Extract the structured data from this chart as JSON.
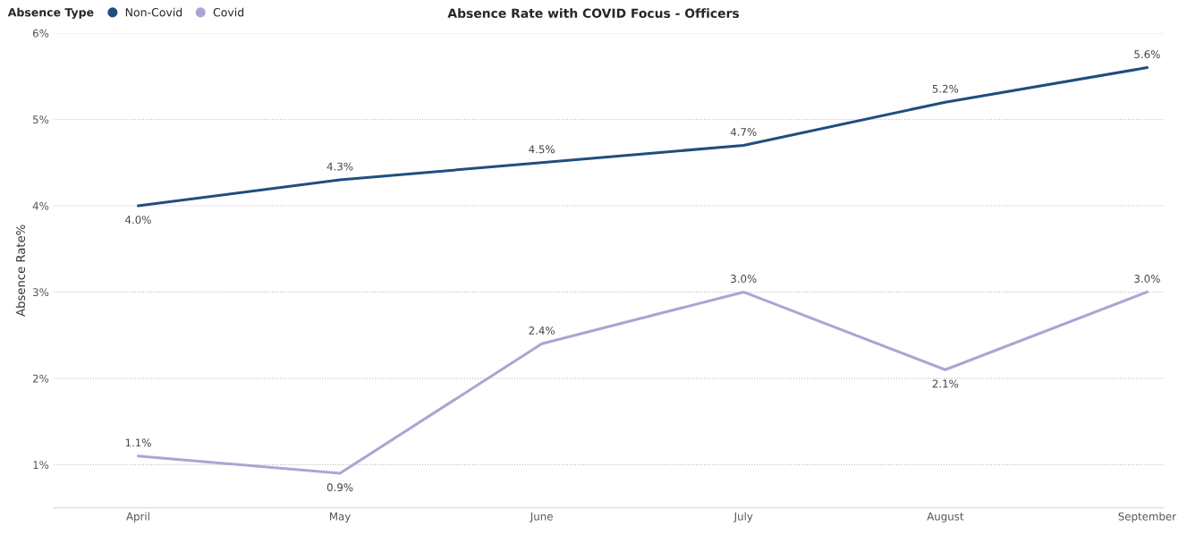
{
  "chart_data": {
    "type": "line",
    "title": "Absence Rate with COVID Focus - Officers",
    "ylabel": "Absence Rate%",
    "legend_title": "Absence Type",
    "categories": [
      "April",
      "May",
      "June",
      "July",
      "August",
      "September"
    ],
    "series": [
      {
        "name": "Non-Covid",
        "color": "#1f4e7e",
        "values": [
          4.0,
          4.3,
          4.5,
          4.7,
          5.2,
          5.6
        ],
        "value_labels": [
          "4.0%",
          "4.3%",
          "4.5%",
          "4.7%",
          "5.2%",
          "5.6%"
        ]
      },
      {
        "name": "Covid",
        "color": "#a9a6d4",
        "values": [
          1.1,
          0.9,
          2.4,
          3.0,
          2.1,
          3.0
        ],
        "value_labels": [
          "1.1%",
          "0.9%",
          "2.4%",
          "3.0%",
          "2.1%",
          "3.0%"
        ]
      }
    ],
    "ylim": [
      0.5,
      6
    ],
    "yticks": [
      {
        "value": 1,
        "label": "1%"
      },
      {
        "value": 2,
        "label": "2%"
      },
      {
        "value": 3,
        "label": "3%"
      },
      {
        "value": 4,
        "label": "4%"
      },
      {
        "value": 5,
        "label": "5%"
      },
      {
        "value": 6,
        "label": "6%"
      }
    ],
    "grid": "y",
    "legend": "top left",
    "marker": "none",
    "line_style": "solid"
  }
}
